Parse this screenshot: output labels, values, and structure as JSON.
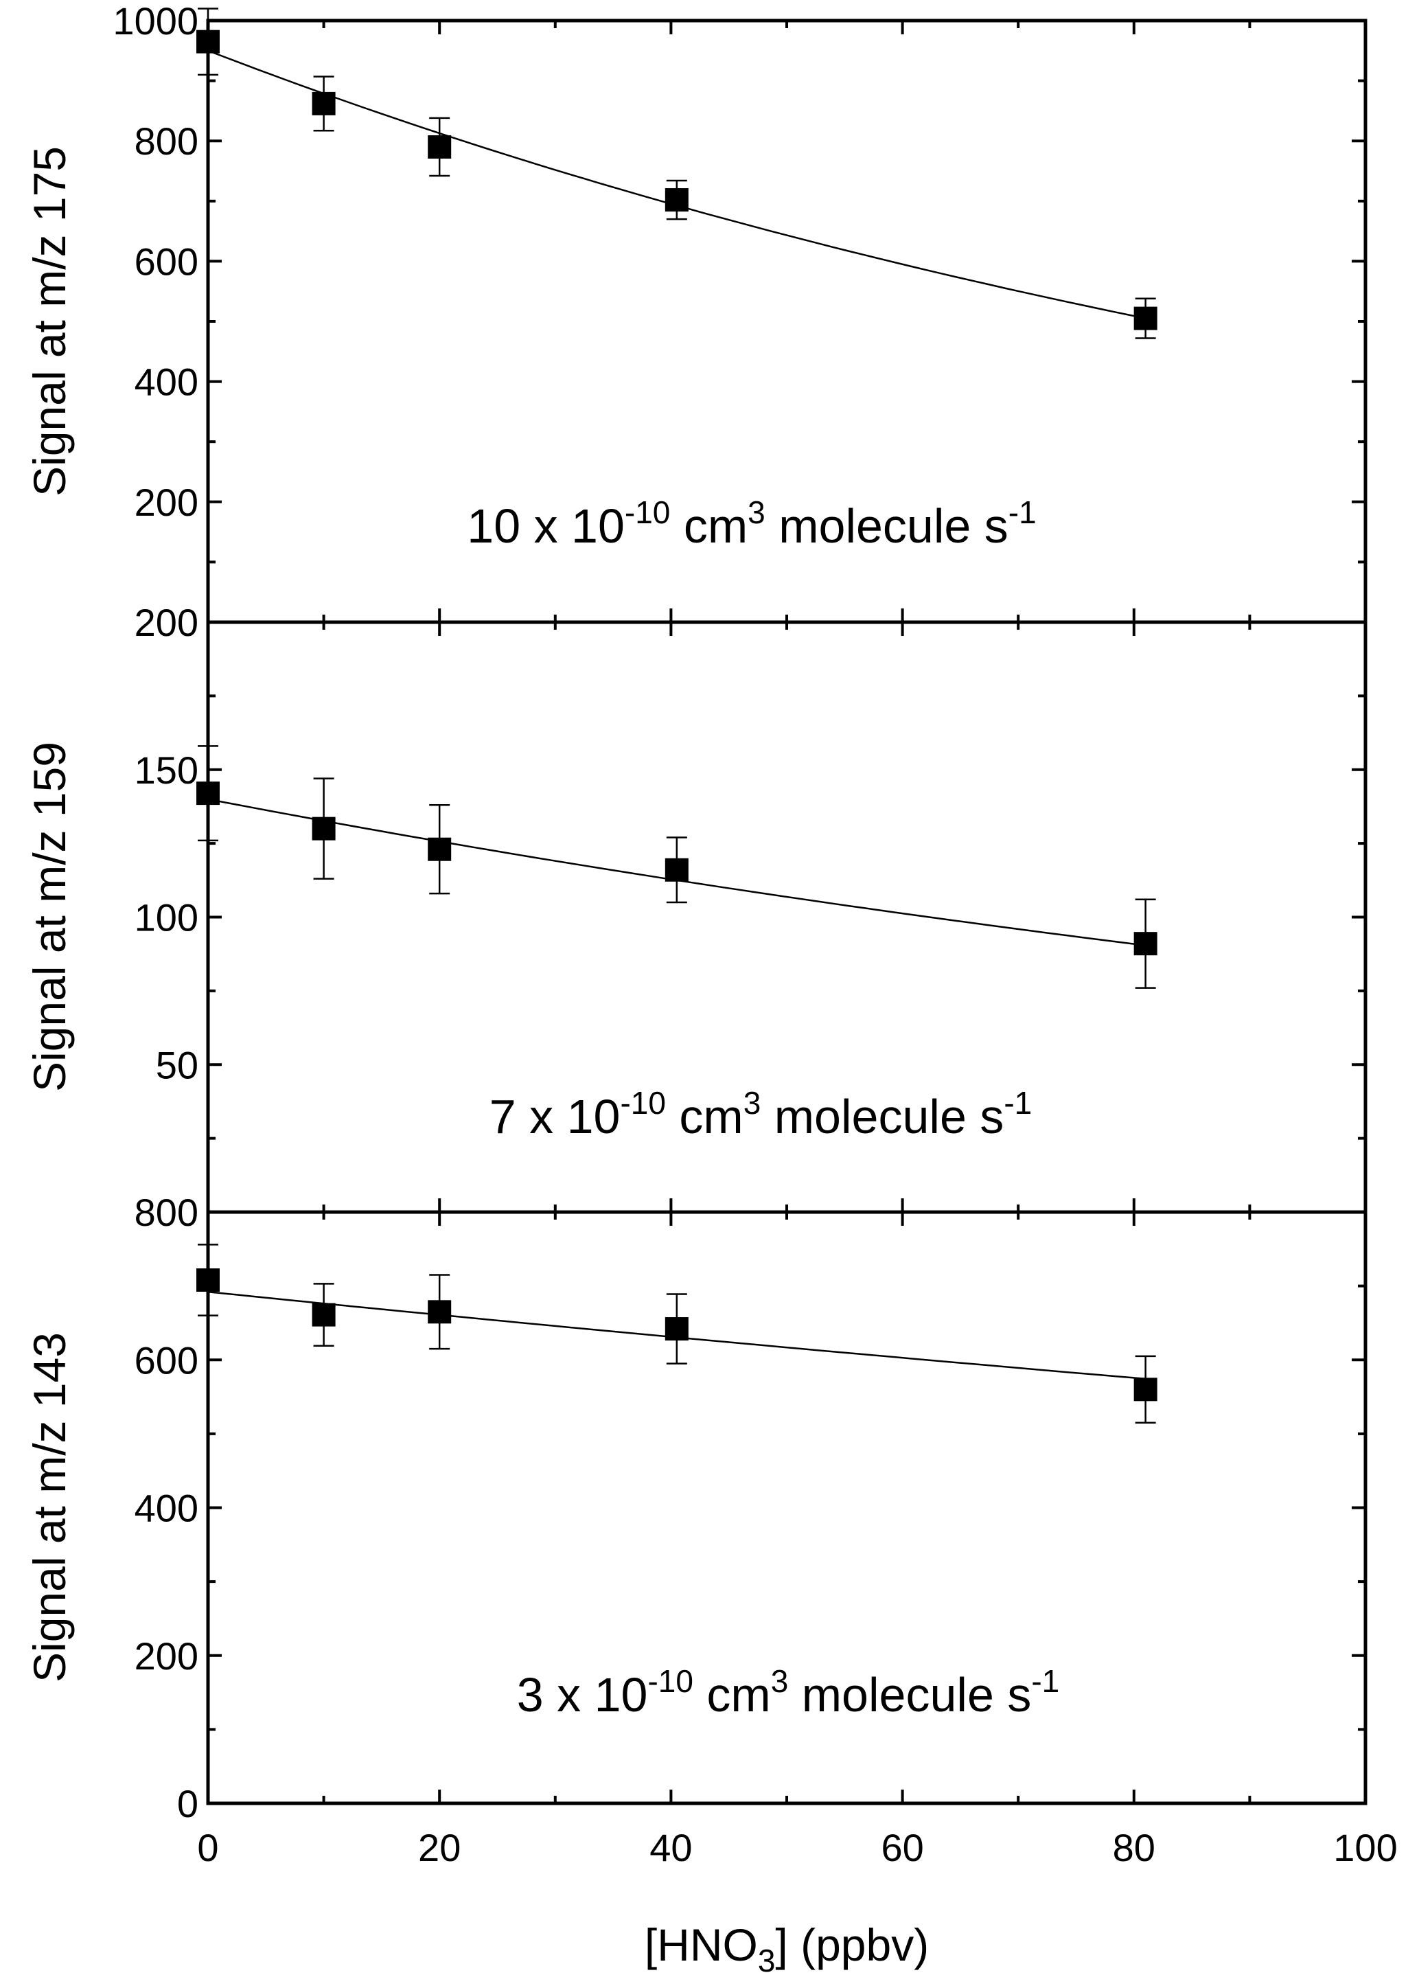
{
  "chart_data": {
    "type": "scatter",
    "shared_x": true,
    "x_axis": {
      "label": "[HNO",
      "label_sub": "3",
      "label_tail": "] (ppbv)",
      "range": [
        0,
        100
      ],
      "ticks": [
        0,
        20,
        40,
        60,
        80,
        100
      ],
      "tick_labels": [
        "0",
        "20",
        "40",
        "60",
        "80",
        "100"
      ]
    },
    "panels": [
      {
        "id": "m175",
        "ylabel": "Signal at m/z 175",
        "ylim": [
          0,
          1000
        ],
        "yticks": [
          200,
          400,
          600,
          800,
          1000
        ],
        "ytick_labels": [
          "200",
          "400",
          "600",
          "800",
          "1000"
        ],
        "annotation": {
          "prefix": "10 x 10",
          "exp1": "-10",
          "mid": " cm",
          "exp2": "3",
          "suffix": " molecule s",
          "exp3": "-1"
        },
        "points": [
          {
            "x": 0,
            "y": 965,
            "err": 55
          },
          {
            "x": 10,
            "y": 862,
            "err": 45
          },
          {
            "x": 20,
            "y": 790,
            "err": 48
          },
          {
            "x": 40.5,
            "y": 702,
            "err": 32
          },
          {
            "x": 81,
            "y": 505,
            "err": 33
          }
        ],
        "fit": {
          "model": "exponential",
          "a": 950,
          "b": 0.0078,
          "x_range": [
            0,
            81
          ]
        }
      },
      {
        "id": "m159",
        "ylabel": "Signal at m/z 159",
        "ylim": [
          0,
          200
        ],
        "yticks": [
          50,
          100,
          150,
          200
        ],
        "ytick_labels": [
          "50",
          "100",
          "150",
          "200"
        ],
        "annotation": {
          "prefix": "7 x 10",
          "exp1": "-10",
          "mid": " cm",
          "exp2": "3",
          "suffix": " molecule s",
          "exp3": "-1"
        },
        "points": [
          {
            "x": 0,
            "y": 142,
            "err": 16
          },
          {
            "x": 10,
            "y": 130,
            "err": 17
          },
          {
            "x": 20,
            "y": 123,
            "err": 15
          },
          {
            "x": 40.5,
            "y": 116,
            "err": 11
          },
          {
            "x": 81,
            "y": 91,
            "err": 15
          }
        ],
        "fit": {
          "model": "exponential",
          "a": 140,
          "b": 0.0054,
          "x_range": [
            0,
            81
          ]
        }
      },
      {
        "id": "m143",
        "ylabel": "Signal at m/z 143",
        "ylim": [
          0,
          800
        ],
        "yticks": [
          0,
          200,
          400,
          600,
          800
        ],
        "ytick_labels": [
          "0",
          "200",
          "400",
          "600",
          "800"
        ],
        "annotation": {
          "prefix": "3 x 10",
          "exp1": "-10",
          "mid": " cm",
          "exp2": "3",
          "suffix": " molecule s",
          "exp3": "-1"
        },
        "points": [
          {
            "x": 0,
            "y": 708,
            "err": 48
          },
          {
            "x": 10,
            "y": 661,
            "err": 42
          },
          {
            "x": 20,
            "y": 665,
            "err": 50
          },
          {
            "x": 40.5,
            "y": 642,
            "err": 47
          },
          {
            "x": 81,
            "y": 560,
            "err": 45
          }
        ],
        "fit": {
          "model": "exponential",
          "a": 692,
          "b": 0.0023,
          "x_range": [
            0,
            81
          ]
        }
      }
    ]
  }
}
